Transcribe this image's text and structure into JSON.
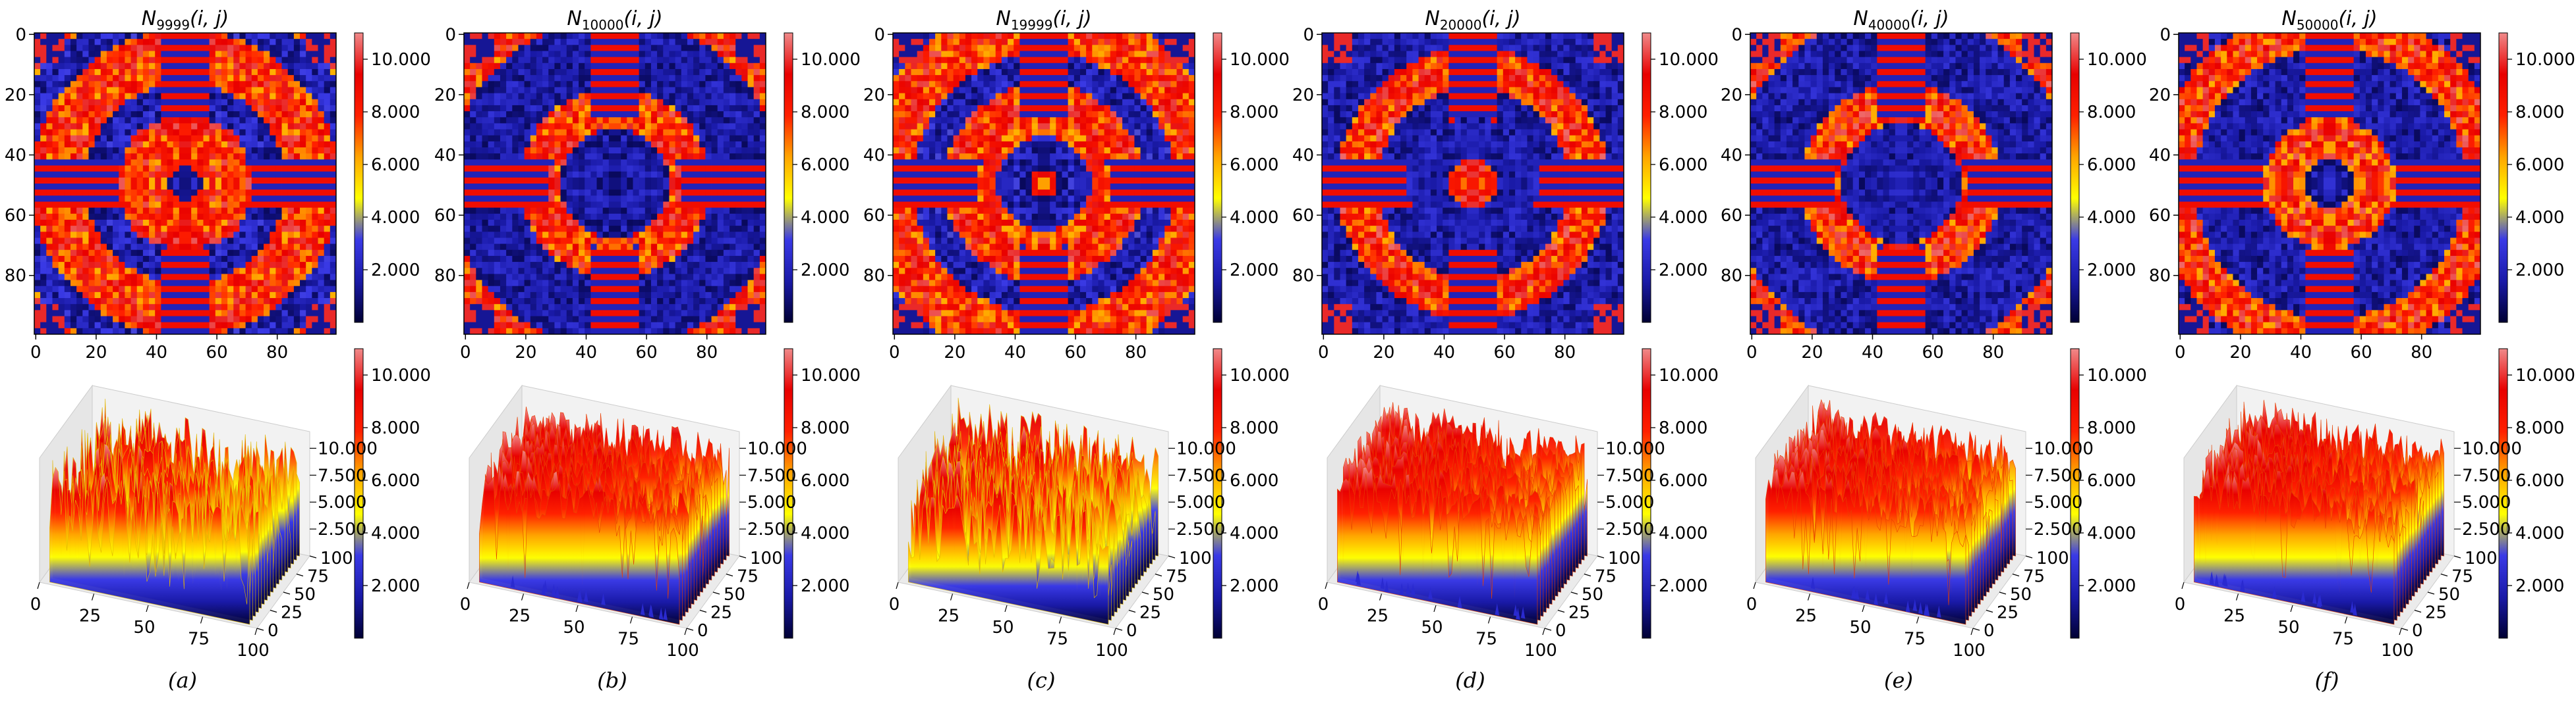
{
  "chart_data": {
    "type": "heatmap",
    "colormap": "blue-yellow-red",
    "colormap_stops": [
      "#000033",
      "#1a1aa8",
      "#3a3ae6",
      "#ffff00",
      "#ffa500",
      "#ff2000",
      "#e80000",
      "#f08a8a"
    ],
    "value_range": [
      0,
      11
    ],
    "grid_size": 100,
    "heatmap_axis": {
      "ticks": [
        0,
        20,
        40,
        60,
        80
      ],
      "xlim": [
        0,
        99
      ],
      "ylim": [
        99,
        0
      ]
    },
    "colorbar_ticks": [
      "2.000",
      "4.000",
      "6.000",
      "8.000",
      "10.000"
    ],
    "colorbar_tick_values": [
      2,
      4,
      6,
      8,
      10
    ],
    "surface_axis": {
      "xy_ticks": [
        "0",
        "25",
        "50",
        "75",
        "100"
      ],
      "z_ticks": [
        "2.500",
        "5.000",
        "7.500",
        "10.000"
      ],
      "z_tick_values": [
        2.5,
        5,
        7.5,
        10
      ]
    },
    "panels": [
      {
        "id": "a",
        "title": "N9999(i,j)",
        "title_base": "N",
        "title_sub": "9999",
        "title_args": "(i, j)",
        "label": "(a)",
        "mean_level": "low"
      },
      {
        "id": "b",
        "title": "N10000(i,j)",
        "title_base": "N",
        "title_sub": "10000",
        "title_args": "(i, j)",
        "label": "(b)",
        "mean_level": "high"
      },
      {
        "id": "c",
        "title": "N19999(i,j)",
        "title_base": "N",
        "title_sub": "19999",
        "title_args": "(i, j)",
        "label": "(c)",
        "mean_level": "low"
      },
      {
        "id": "d",
        "title": "N20000(i,j)",
        "title_base": "N",
        "title_sub": "20000",
        "title_args": "(i, j)",
        "label": "(d)",
        "mean_level": "high"
      },
      {
        "id": "e",
        "title": "N40000(i,j)",
        "title_base": "N",
        "title_sub": "40000",
        "title_args": "(i, j)",
        "label": "(e)",
        "mean_level": "high"
      },
      {
        "id": "f",
        "title": "N50000(i,j)",
        "title_base": "N",
        "title_sub": "50000",
        "title_args": "(i, j)",
        "label": "(f)",
        "mean_level": "high"
      }
    ]
  }
}
